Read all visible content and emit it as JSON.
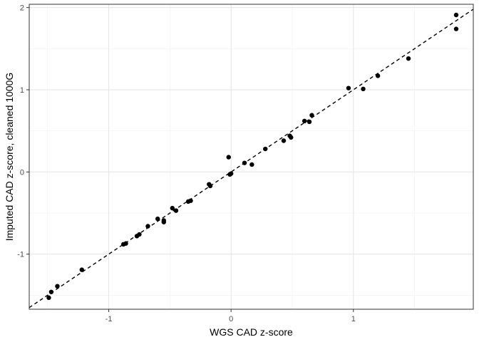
{
  "chart_data": {
    "type": "scatter",
    "xlabel": "WGS CAD z-score",
    "ylabel": "Imputed CAD z-score, cleaned 1000G",
    "xlim": [
      -1.65,
      1.98
    ],
    "ylim": [
      -1.67,
      2.04
    ],
    "x_ticks": [
      -1,
      0,
      1
    ],
    "y_ticks": [
      -1,
      0,
      1,
      2
    ],
    "x_tick_labels": [
      "-1",
      "0",
      "1"
    ],
    "y_tick_labels": [
      "-1",
      "0",
      "1",
      "2"
    ],
    "grid": true,
    "reference_line": {
      "type": "identity",
      "slope": 1,
      "intercept": 0,
      "style": "dashed"
    },
    "points": [
      {
        "x": -1.49,
        "y": -1.53
      },
      {
        "x": -1.47,
        "y": -1.46
      },
      {
        "x": -1.42,
        "y": -1.39
      },
      {
        "x": -1.22,
        "y": -1.19
      },
      {
        "x": -0.88,
        "y": -0.88
      },
      {
        "x": -0.86,
        "y": -0.87
      },
      {
        "x": -0.77,
        "y": -0.78
      },
      {
        "x": -0.75,
        "y": -0.76
      },
      {
        "x": -0.68,
        "y": -0.66
      },
      {
        "x": -0.6,
        "y": -0.57
      },
      {
        "x": -0.55,
        "y": -0.59
      },
      {
        "x": -0.55,
        "y": -0.61
      },
      {
        "x": -0.48,
        "y": -0.44
      },
      {
        "x": -0.45,
        "y": -0.47
      },
      {
        "x": -0.35,
        "y": -0.36
      },
      {
        "x": -0.33,
        "y": -0.35
      },
      {
        "x": -0.18,
        "y": -0.15
      },
      {
        "x": -0.17,
        "y": -0.17
      },
      {
        "x": -0.02,
        "y": 0.18
      },
      {
        "x": -0.01,
        "y": -0.03
      },
      {
        "x": 0.0,
        "y": -0.02
      },
      {
        "x": 0.11,
        "y": 0.11
      },
      {
        "x": 0.17,
        "y": 0.09
      },
      {
        "x": 0.28,
        "y": 0.28
      },
      {
        "x": 0.43,
        "y": 0.38
      },
      {
        "x": 0.48,
        "y": 0.44
      },
      {
        "x": 0.49,
        "y": 0.42
      },
      {
        "x": 0.6,
        "y": 0.62
      },
      {
        "x": 0.64,
        "y": 0.61
      },
      {
        "x": 0.66,
        "y": 0.69
      },
      {
        "x": 0.96,
        "y": 1.02
      },
      {
        "x": 1.08,
        "y": 1.01
      },
      {
        "x": 1.2,
        "y": 1.17
      },
      {
        "x": 1.45,
        "y": 1.38
      },
      {
        "x": 1.84,
        "y": 1.91
      },
      {
        "x": 1.84,
        "y": 1.74
      }
    ]
  }
}
